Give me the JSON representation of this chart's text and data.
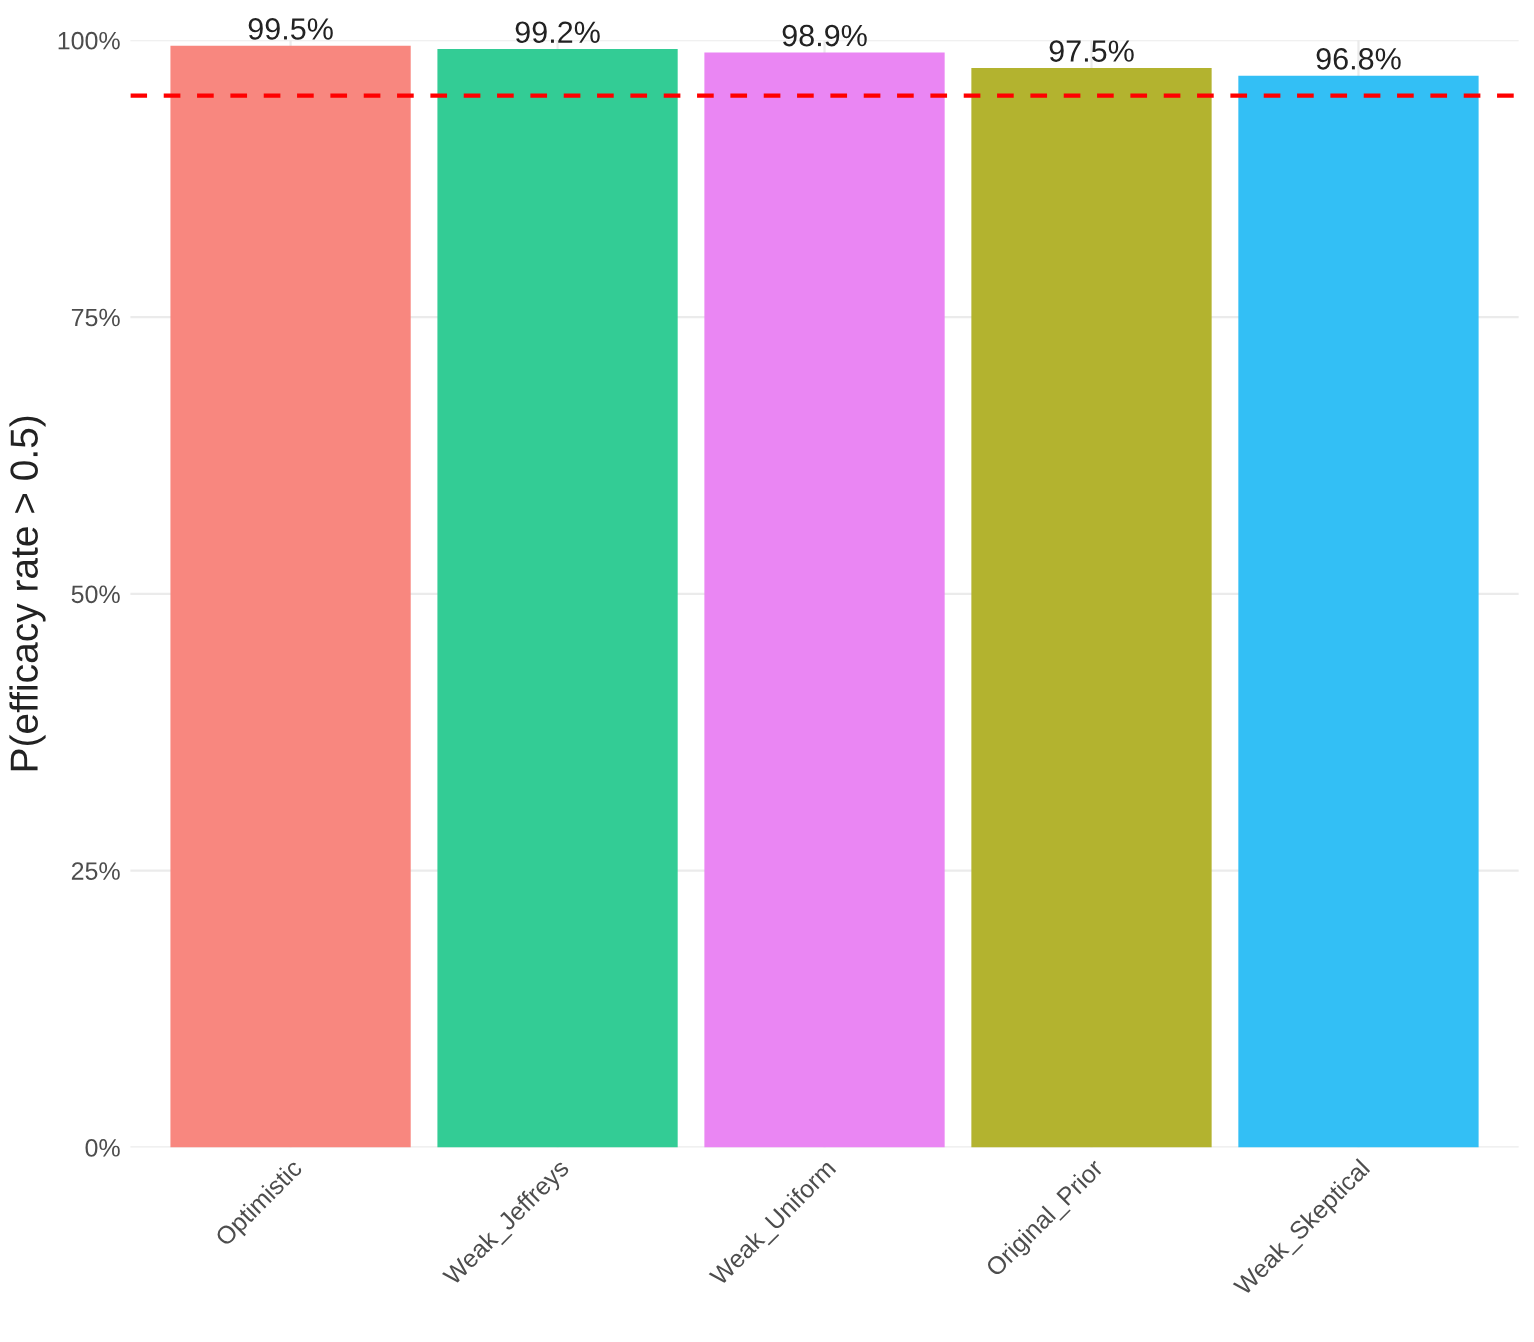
{
  "chart_data": {
    "type": "bar",
    "ylabel": "P(efficacy rate > 0.5)",
    "categories": [
      "Optimistic",
      "Weak_Jeffreys",
      "Weak_Uniform",
      "Original_Prior",
      "Weak_Skeptical"
    ],
    "values": [
      99.5,
      99.2,
      98.9,
      97.5,
      96.8
    ],
    "colors": [
      "#f8877f",
      "#33cc95",
      "#ea86f3",
      "#b3b32f",
      "#33bff5"
    ],
    "value_labels": [
      "99.5%",
      "99.2%",
      "98.9%",
      "97.5%",
      "96.8%"
    ],
    "ylim": [
      0,
      100
    ],
    "yticks": [
      {
        "value": 0,
        "label": "0%"
      },
      {
        "value": 25,
        "label": "25%"
      },
      {
        "value": 50,
        "label": "50%"
      },
      {
        "value": 75,
        "label": "75%"
      },
      {
        "value": 100,
        "label": "100%"
      }
    ],
    "ref_lines": [
      {
        "axis": "y",
        "value": 95,
        "color": "#ff0000",
        "line_style": "dashed"
      }
    ],
    "grid": true
  }
}
